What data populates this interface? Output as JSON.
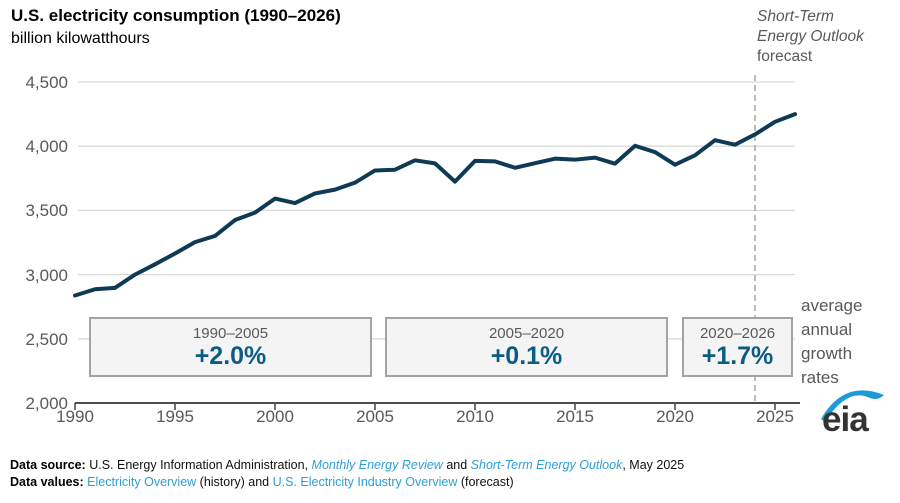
{
  "title": "U.S. electricity consumption (1990–2026)",
  "subtitle": "billion kilowatthours",
  "forecast_note": {
    "line1": "Short-Term",
    "line2": "Energy Outlook",
    "line3": "forecast"
  },
  "growth_note": "average annual growth rates",
  "growth_boxes": [
    {
      "period": "1990–2005",
      "rate": "+2.0%"
    },
    {
      "period": "2005–2020",
      "rate": "+0.1%"
    },
    {
      "period": "2020–2026",
      "rate": "+1.7%"
    }
  ],
  "logo_text": "eia",
  "colors": {
    "line": "#0e3a53",
    "rate_blue": "#0b5c84",
    "link_blue": "#2f9ed8",
    "axis_gray": "#595959",
    "gridline": "#d9d9d9",
    "dashed_gray": "#a6a6a6",
    "box_bg": "#f4f4f4",
    "logo_blue": "#1e9bd7"
  },
  "chart_data": {
    "type": "line",
    "title": "U.S. electricity consumption (1990–2026)",
    "ylabel": "billion kilowatthours",
    "units": "billion kilowatthours",
    "grid": true,
    "ylim": [
      2000,
      4500
    ],
    "yticks": [
      "4,500",
      "4,000",
      "3,500",
      "3,000",
      "2,500",
      "2,000"
    ],
    "ytick_values": [
      4500,
      4000,
      3500,
      3000,
      2500,
      2000
    ],
    "xticks": [
      "1990",
      "1995",
      "2000",
      "2005",
      "2010",
      "2015",
      "2020",
      "2025"
    ],
    "xtick_values": [
      1990,
      1995,
      2000,
      2005,
      2010,
      2015,
      2020,
      2025
    ],
    "forecast_line_year": 2024,
    "series_name": "U.S. electricity consumption",
    "x": [
      1990,
      1991,
      1992,
      1993,
      1994,
      1995,
      1996,
      1997,
      1998,
      1999,
      2000,
      2001,
      2002,
      2003,
      2004,
      2005,
      2006,
      2007,
      2008,
      2009,
      2010,
      2011,
      2012,
      2013,
      2014,
      2015,
      2016,
      2017,
      2018,
      2019,
      2020,
      2021,
      2022,
      2023,
      2024,
      2025,
      2026
    ],
    "values": [
      2837,
      2886,
      2897,
      3000,
      3080,
      3164,
      3253,
      3301,
      3425,
      3483,
      3592,
      3557,
      3632,
      3662,
      3716,
      3811,
      3817,
      3890,
      3866,
      3724,
      3886,
      3882,
      3832,
      3868,
      3903,
      3895,
      3911,
      3864,
      4003,
      3954,
      3856,
      3929,
      4047,
      4012,
      4092,
      4190,
      4250
    ]
  },
  "footer": {
    "source": {
      "label": "Data source:",
      "text_a": " U.S. Energy Information Administration, ",
      "link_mer": "Monthly Energy Review",
      "text_b": " and ",
      "link_steo": "Short-Term Energy Outlook",
      "text_c": ", May 2025"
    },
    "values": {
      "label": "Data values:",
      "text_sp": " ",
      "link_eo": "Electricity Overview",
      "text_a": " (history) and ",
      "link_ueio": "U.S. Electricity Industry Overview",
      "text_b": " (forecast)"
    }
  }
}
